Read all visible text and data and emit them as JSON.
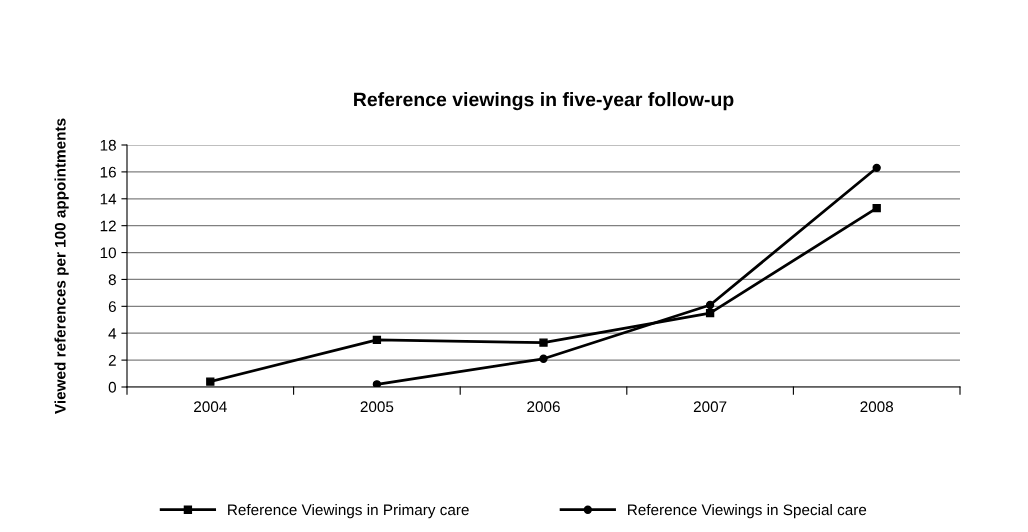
{
  "chart_data": {
    "type": "line",
    "title": "Reference viewings in five-year follow-up",
    "ylabel": "Viewed references per 100 appointments",
    "categories": [
      "2004",
      "2005",
      "2006",
      "2007",
      "2008"
    ],
    "series": [
      {
        "name": "Reference Viewings in Primary care",
        "color": "#000000",
        "marker": "square",
        "values": [
          0.4,
          3.5,
          3.3,
          5.5,
          13.3
        ]
      },
      {
        "name": "Reference Viewings in Special care",
        "color": "#000000",
        "marker": "circle",
        "values": [
          null,
          0.2,
          2.1,
          6.1,
          16.3
        ]
      }
    ],
    "ylim": [
      0,
      18
    ],
    "yticks": [
      0,
      2,
      4,
      6,
      8,
      10,
      12,
      14,
      16,
      18
    ],
    "grid": "y",
    "legend": "bottom",
    "line_style": "solid"
  }
}
